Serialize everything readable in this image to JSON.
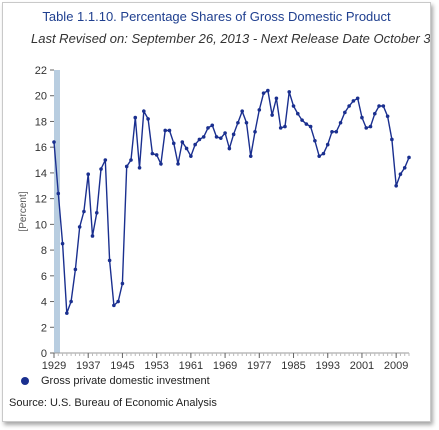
{
  "chart_data": {
    "type": "line",
    "title": "Table 1.1.10. Percentage Shares of Gross Domestic Product",
    "subtitle": "Last Revised on: September 26, 2013 - Next Release Date October 3",
    "xlabel": "",
    "ylabel": "[Percent]",
    "ylim": [
      0,
      22
    ],
    "xlim": [
      1929,
      2012
    ],
    "yticks": [
      0,
      2,
      4,
      6,
      8,
      10,
      12,
      14,
      16,
      18,
      20,
      22
    ],
    "xticks": [
      1929,
      1937,
      1945,
      1953,
      1961,
      1969,
      1977,
      1985,
      1993,
      2001,
      2009
    ],
    "grid": false,
    "legend_position": "bottom-left",
    "series": [
      {
        "name": "Gross private domestic investment",
        "color": "#1a2f8f",
        "x": [
          1929,
          1930,
          1931,
          1932,
          1933,
          1934,
          1935,
          1936,
          1937,
          1938,
          1939,
          1940,
          1941,
          1942,
          1943,
          1944,
          1945,
          1946,
          1947,
          1948,
          1949,
          1950,
          1951,
          1952,
          1953,
          1954,
          1955,
          1956,
          1957,
          1958,
          1959,
          1960,
          1961,
          1962,
          1963,
          1964,
          1965,
          1966,
          1967,
          1968,
          1969,
          1970,
          1971,
          1972,
          1973,
          1974,
          1975,
          1976,
          1977,
          1978,
          1979,
          1980,
          1981,
          1982,
          1983,
          1984,
          1985,
          1986,
          1987,
          1988,
          1989,
          1990,
          1991,
          1992,
          1993,
          1994,
          1995,
          1996,
          1997,
          1998,
          1999,
          2000,
          2001,
          2002,
          2003,
          2004,
          2005,
          2006,
          2007,
          2008,
          2009,
          2010,
          2011,
          2012
        ],
        "values": [
          16.4,
          12.4,
          8.5,
          3.1,
          4.0,
          6.5,
          9.8,
          11.0,
          13.9,
          9.1,
          10.9,
          14.3,
          15.0,
          7.2,
          3.7,
          4.0,
          5.4,
          14.5,
          15.0,
          18.3,
          14.4,
          18.8,
          18.2,
          15.5,
          15.4,
          14.7,
          17.3,
          17.3,
          16.3,
          14.7,
          16.4,
          15.9,
          15.3,
          16.2,
          16.6,
          16.8,
          17.5,
          17.7,
          16.8,
          16.7,
          17.1,
          15.9,
          17.0,
          17.9,
          18.8,
          17.9,
          15.3,
          17.2,
          18.9,
          20.2,
          20.4,
          18.5,
          19.8,
          17.5,
          17.6,
          20.3,
          19.2,
          18.6,
          18.1,
          17.8,
          17.6,
          16.5,
          15.3,
          15.5,
          16.2,
          17.2,
          17.2,
          17.9,
          18.7,
          19.2,
          19.6,
          19.8,
          18.3,
          17.5,
          17.6,
          18.6,
          19.2,
          19.2,
          18.4,
          16.6,
          13.0,
          13.9,
          14.4,
          15.2
        ]
      }
    ]
  },
  "source": "Source: U.S. Bureau of Economic Analysis"
}
